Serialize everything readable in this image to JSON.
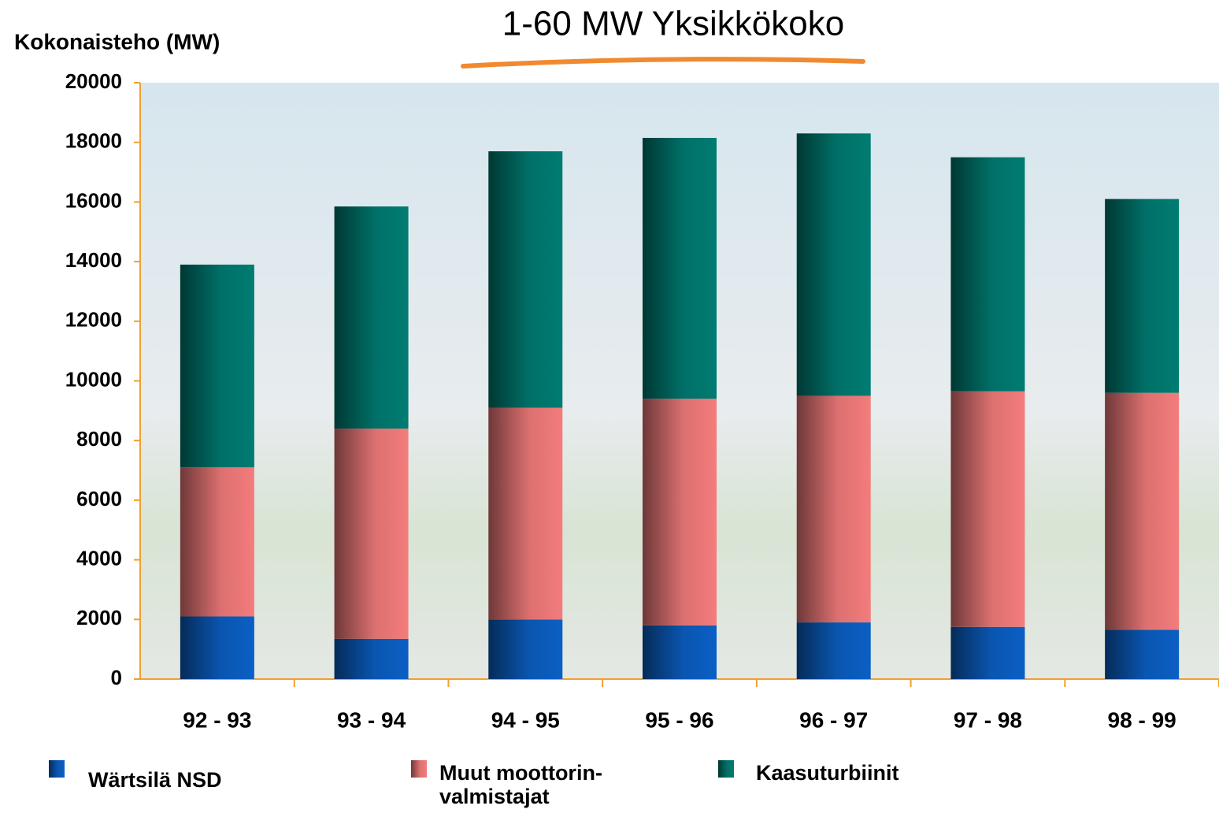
{
  "chart_data": {
    "type": "stacked-bar",
    "title": "1-60 MW Yksikkökoko",
    "y_label": "Kokonaisteho (MW)",
    "categories": [
      "92 - 93",
      "93 - 94",
      "94 - 95",
      "95 - 96",
      "96 - 97",
      "97 - 98",
      "98 - 99"
    ],
    "series": [
      {
        "name": "Wärtsilä NSD",
        "color": "#0b5fc4",
        "values": [
          2100,
          1350,
          2000,
          1800,
          1900,
          1750,
          1650
        ]
      },
      {
        "name": "Muut moottorin-\nvalmistajat",
        "color": "#f47c7c",
        "values": [
          5000,
          7050,
          7100,
          7600,
          7600,
          7900,
          7950
        ]
      },
      {
        "name": "Kaasuturbiinit",
        "color": "#007c72",
        "values": [
          6800,
          7450,
          8600,
          8750,
          8800,
          7850,
          6500
        ]
      }
    ],
    "ylim": [
      0,
      20000
    ],
    "yticks": [
      0,
      2000,
      4000,
      6000,
      8000,
      10000,
      12000,
      14000,
      16000,
      18000,
      20000
    ]
  }
}
